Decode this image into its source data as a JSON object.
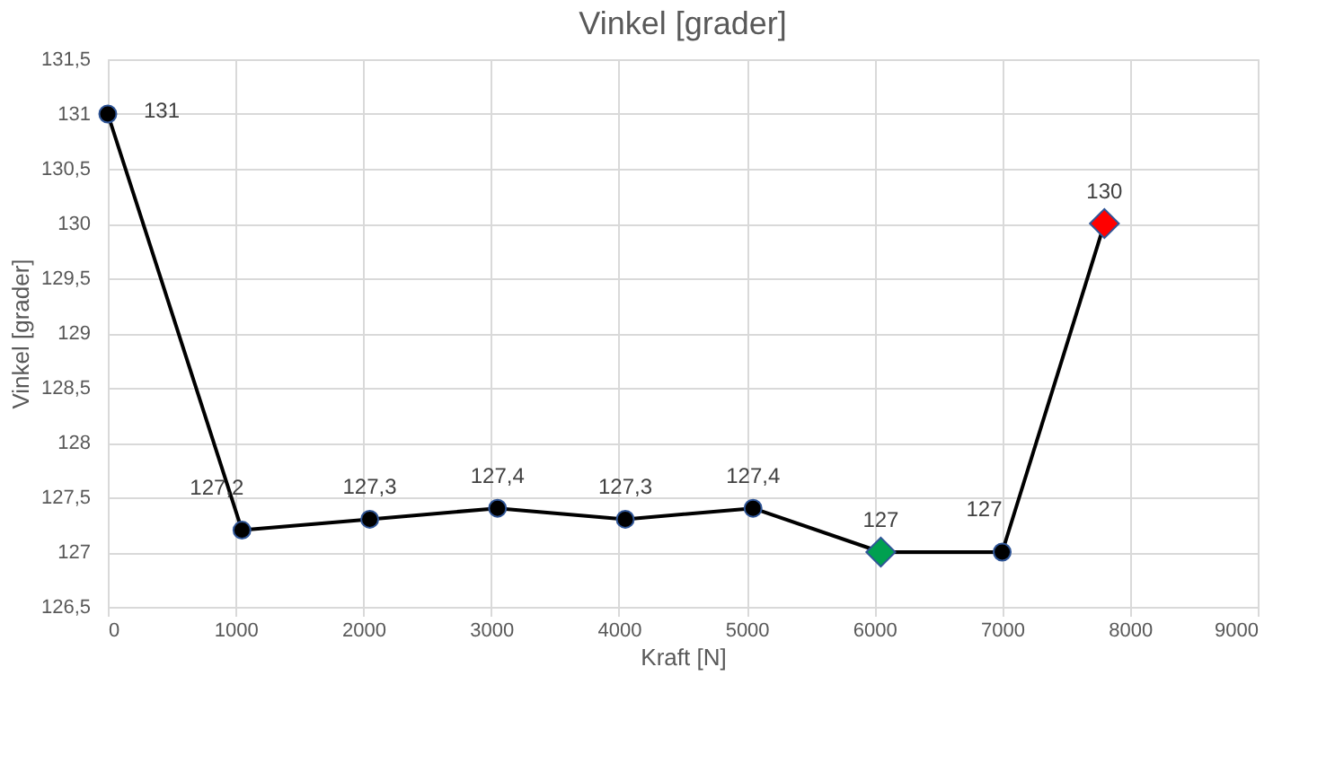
{
  "chart_data": {
    "type": "line",
    "title": "Vinkel [grader]",
    "xlabel": "Kraft [N]",
    "ylabel": "Vinkel [grader]",
    "x": [
      0,
      1050,
      2050,
      3050,
      4050,
      5050,
      6050,
      7000,
      7800
    ],
    "series": [
      {
        "color": "#000000",
        "marker": "none",
        "values": [
          131,
          127.2,
          127.3,
          127.4,
          127.3,
          127.4,
          127,
          127,
          130
        ],
        "value_labels": [
          "131",
          "127,2",
          "127,3",
          "127,4",
          "127,3",
          "127,4",
          "127",
          "127",
          "130"
        ]
      },
      {
        "type": "scatter",
        "color": "#000000",
        "marker": "circle",
        "x": [
          0,
          1050,
          2050,
          3050,
          4050,
          5050,
          7000
        ],
        "values": [
          131,
          127.2,
          127.3,
          127.4,
          127.3,
          127.4,
          127
        ]
      },
      {
        "type": "scatter",
        "color": "#00a050",
        "marker": "diamond",
        "x": [
          6050
        ],
        "values": [
          127
        ]
      },
      {
        "type": "scatter",
        "color": "#ff0000",
        "marker": "diamond",
        "x": [
          7800
        ],
        "values": [
          130
        ]
      }
    ],
    "xlim": [
      0,
      9000
    ],
    "xticks": [
      0,
      1000,
      2000,
      3000,
      4000,
      5000,
      6000,
      7000,
      8000,
      9000
    ],
    "ylim": [
      126.5,
      131.5
    ],
    "yticks": [
      {
        "value": 126.5,
        "label": "126,5"
      },
      127,
      {
        "value": 127.5,
        "label": "127,5"
      },
      128,
      {
        "value": 128.5,
        "label": "128,5"
      },
      129,
      {
        "value": 129.5,
        "label": "129,5"
      },
      130,
      {
        "value": 130.5,
        "label": "130,5"
      },
      131,
      {
        "value": 131.5,
        "label": "131,5"
      }
    ],
    "grid": true
  }
}
